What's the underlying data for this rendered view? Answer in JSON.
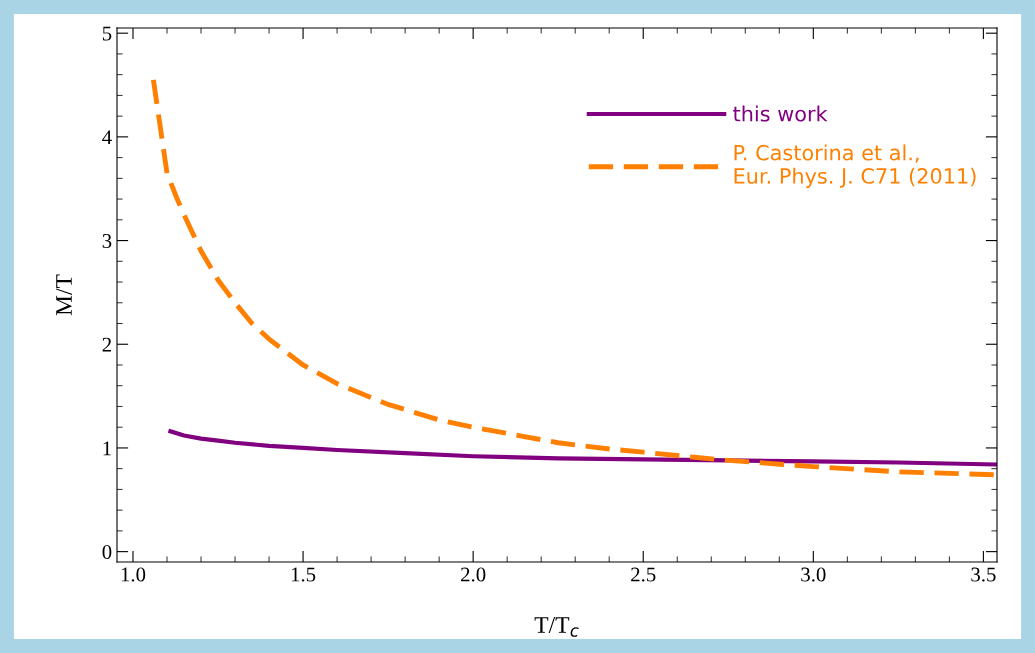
{
  "chart_data": {
    "type": "line",
    "xlabel": "T/T$_{c}$",
    "ylabel": "M/T",
    "xlim": [
      0.953,
      3.54
    ],
    "ylim": [
      -0.1,
      5.05
    ],
    "xticks": [
      {
        "value": 1.0,
        "label": "1.0"
      },
      {
        "value": 1.5,
        "label": "1.5"
      },
      {
        "value": 2.0,
        "label": "2.0"
      },
      {
        "value": 2.5,
        "label": "2.5"
      },
      {
        "value": 3.0,
        "label": "3.0"
      },
      {
        "value": 3.5,
        "label": "3.5"
      }
    ],
    "yticks": [
      0,
      1,
      2,
      3,
      4,
      5
    ],
    "legend": "top right",
    "grid": false,
    "series": [
      {
        "name": "this work",
        "color": "#800080",
        "line_style": "solid",
        "x": [
          1.11,
          1.15,
          1.2,
          1.25,
          1.3,
          1.4,
          1.5,
          1.6,
          1.8,
          2.0,
          2.25,
          2.5,
          2.75,
          3.0,
          3.25,
          3.54
        ],
        "values": [
          1.16,
          1.12,
          1.09,
          1.07,
          1.05,
          1.02,
          1.0,
          0.98,
          0.95,
          0.92,
          0.9,
          0.89,
          0.88,
          0.87,
          0.86,
          0.84
        ]
      },
      {
        "name": "P. Castorina et al.,\nEur. Phys. J. C71 (2011)",
        "color": "#ff8000",
        "line_style": "dashed",
        "x": [
          1.06,
          1.08,
          1.1,
          1.13,
          1.15,
          1.2,
          1.25,
          1.3,
          1.35,
          1.4,
          1.5,
          1.6,
          1.75,
          1.9,
          2.0,
          2.15,
          2.25,
          2.4,
          2.5,
          2.65,
          2.75,
          3.0,
          3.25,
          3.54
        ],
        "values": [
          4.55,
          4.1,
          3.65,
          3.4,
          3.25,
          2.9,
          2.62,
          2.4,
          2.2,
          2.05,
          1.8,
          1.62,
          1.42,
          1.27,
          1.2,
          1.11,
          1.05,
          0.99,
          0.96,
          0.91,
          0.88,
          0.82,
          0.77,
          0.74
        ]
      }
    ]
  }
}
